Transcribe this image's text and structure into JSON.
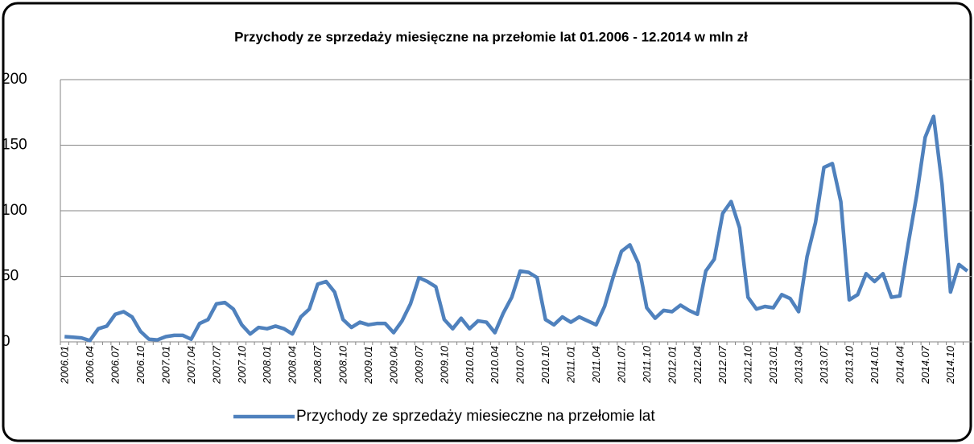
{
  "chart_data": {
    "type": "line",
    "title": "Przychody ze sprzedaży miesięczne na przełomie lat 01.2006 - 12.2014 w mln zł",
    "categories": [
      "2006.01",
      null,
      null,
      "2006.04",
      null,
      null,
      "2006.07",
      null,
      null,
      "2006.10",
      null,
      null,
      "2007.01",
      null,
      null,
      "2007.04",
      null,
      null,
      "2007.07",
      null,
      null,
      "2007.10",
      null,
      null,
      "2008.01",
      null,
      null,
      "2008.04",
      null,
      null,
      "2008.07",
      null,
      null,
      "2008.10",
      null,
      null,
      "2009.01",
      null,
      null,
      "2009.04",
      null,
      null,
      "2009.07",
      null,
      null,
      "2009.10",
      null,
      null,
      "2010.01",
      null,
      null,
      "2010.04",
      null,
      null,
      "2010.07",
      null,
      null,
      "2010.10",
      null,
      null,
      "2011.01",
      null,
      null,
      "2011.04",
      null,
      null,
      "2011.07",
      null,
      null,
      "2011.10",
      null,
      null,
      "2012.01",
      null,
      null,
      "2012.04",
      null,
      null,
      "2012.07",
      null,
      null,
      "2012.10",
      null,
      null,
      "2013.01",
      null,
      null,
      "2013.04",
      null,
      null,
      "2013.07",
      null,
      null,
      "2013.10",
      null,
      null,
      "2014.01",
      null,
      null,
      "2014.04",
      null,
      null,
      "2014.07",
      null,
      null,
      "2014.10",
      null,
      null
    ],
    "series": [
      {
        "name": "Przychody ze sprzedaży miesieczne na przełomie lat",
        "color": "#4f81bd",
        "values": [
          4,
          3.5,
          3,
          1,
          10,
          12,
          21,
          23,
          19,
          8,
          2,
          1.5,
          4,
          5,
          5,
          2,
          14,
          17,
          29,
          30,
          25,
          13,
          6,
          11,
          10,
          12,
          10,
          6,
          19,
          25,
          44,
          46,
          38,
          17,
          11,
          15,
          13,
          14,
          14,
          7,
          16,
          29,
          49,
          46,
          42,
          17,
          10,
          18,
          10,
          16,
          15,
          7,
          22,
          34,
          54,
          53,
          49,
          17,
          13,
          19,
          15,
          19,
          16,
          13,
          27,
          49,
          69,
          74,
          60,
          26,
          18,
          24,
          23,
          28,
          24,
          21,
          54,
          63,
          98,
          107,
          87,
          34,
          25,
          27,
          26,
          36,
          33,
          23,
          65,
          91,
          133,
          136,
          107,
          32,
          36,
          52,
          46,
          52,
          34,
          35,
          75,
          112,
          156,
          172,
          120,
          38,
          59,
          54
        ]
      }
    ],
    "ylim": [
      0,
      200
    ],
    "yticks": [
      0,
      50,
      100,
      150,
      200
    ],
    "grid": true
  }
}
